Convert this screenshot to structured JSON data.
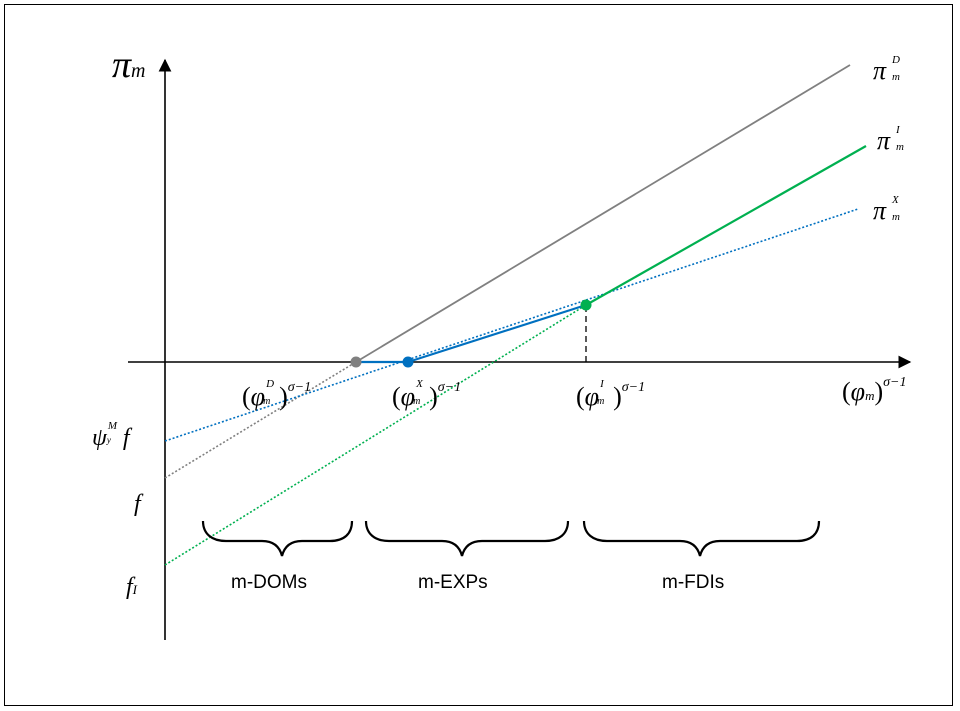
{
  "y_axis": {
    "symbol": "π",
    "sub": "m"
  },
  "x_axis_label": {
    "open": "(",
    "symbol": "φ",
    "sub": "m",
    "close": ")",
    "exp": "σ−1"
  },
  "lines": {
    "domestic": {
      "symbol": "π",
      "sub": "m",
      "sup": "D",
      "color": "#808080"
    },
    "fdi": {
      "symbol": "π",
      "sub": "m",
      "sup": "I",
      "color": "#00b050"
    },
    "export": {
      "symbol": "π",
      "sub": "m",
      "sup": "X",
      "color": "#0070c0"
    }
  },
  "thresholds": {
    "domestic": {
      "open": "(",
      "symbol": "φ",
      "sub": "m",
      "sup": "D",
      "close": ")",
      "exp": "σ−1"
    },
    "export": {
      "open": "(",
      "symbol": "φ",
      "sub": "m",
      "sup": "X",
      "close": ")",
      "exp": "σ−1"
    },
    "fdi": {
      "open": "(",
      "symbol": "φ",
      "sub": "m",
      "sup": "I",
      "close": ")",
      "exp": "σ−1"
    }
  },
  "intercepts": {
    "export": {
      "symbol": "ψ",
      "sub": "y",
      "sup": "M",
      "tail": "f"
    },
    "domestic": {
      "symbol": "f"
    },
    "fdi": {
      "symbol": "f",
      "sub": "I"
    }
  },
  "groups": [
    "m-DOMs",
    "m-EXPs",
    "m-FDIs"
  ]
}
